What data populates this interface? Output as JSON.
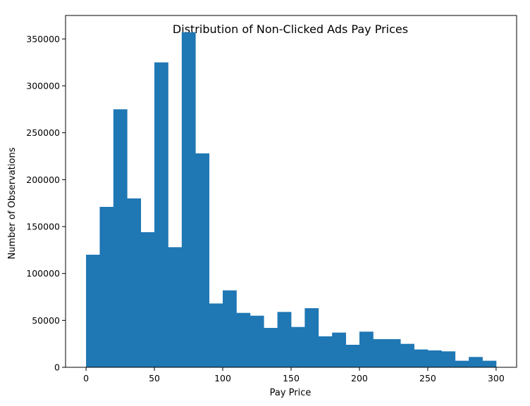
{
  "chart_data": {
    "type": "bar",
    "title": "Distribution of Non-Clicked Ads Pay Prices",
    "xlabel": "Pay Price",
    "ylabel": "Number of Observations",
    "xlim": [
      -15,
      315
    ],
    "ylim": [
      0,
      375000
    ],
    "grid": false,
    "bin_width": 10,
    "bin_starts": [
      0,
      10,
      20,
      30,
      40,
      50,
      60,
      70,
      80,
      90,
      100,
      110,
      120,
      130,
      140,
      150,
      160,
      170,
      180,
      190,
      200,
      210,
      220,
      230,
      240,
      250,
      260,
      270,
      280,
      290
    ],
    "values": [
      120000,
      171000,
      275000,
      180000,
      144000,
      325000,
      128000,
      357000,
      228000,
      68000,
      82000,
      58000,
      55000,
      42000,
      59000,
      43000,
      63000,
      33000,
      37000,
      24000,
      38000,
      30000,
      30000,
      25000,
      19000,
      18000,
      17000,
      7000,
      11000,
      7000
    ],
    "xticks": [
      0,
      50,
      100,
      150,
      200,
      250,
      300
    ],
    "xtick_labels": [
      "0",
      "50",
      "100",
      "150",
      "200",
      "250",
      "300"
    ],
    "yticks": [
      0,
      50000,
      100000,
      150000,
      200000,
      250000,
      300000,
      350000
    ],
    "ytick_labels": [
      "0",
      "50000",
      "100000",
      "150000",
      "200000",
      "250000",
      "300000",
      "350000"
    ],
    "bar_color": "#1f77b4"
  }
}
